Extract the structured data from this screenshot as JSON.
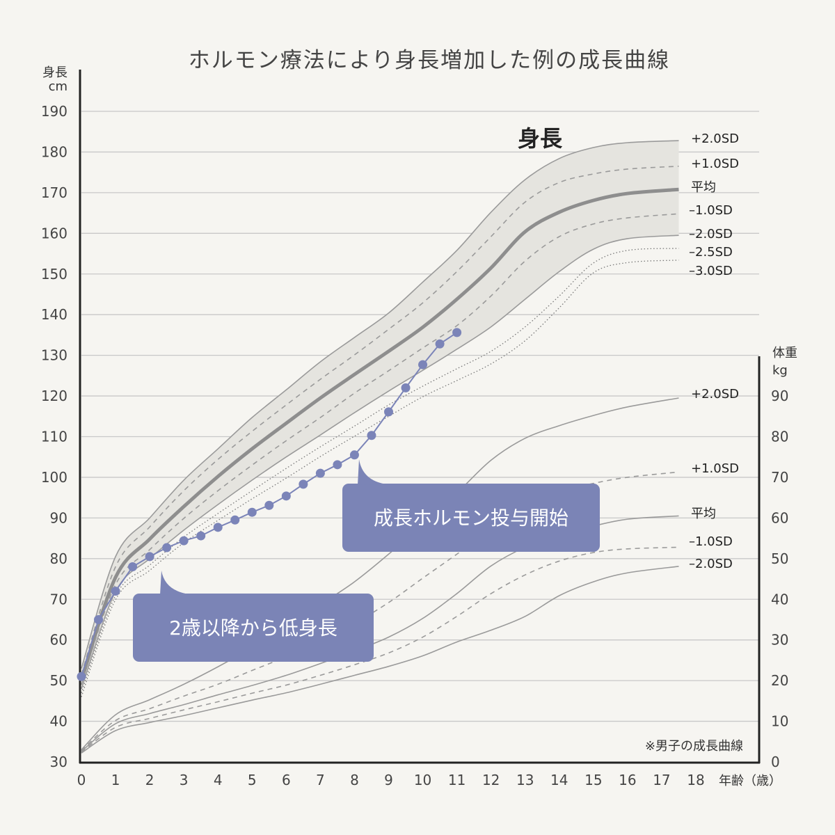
{
  "chart_data": {
    "type": "line",
    "title": "ホルモン療法により身長増加した例の成長曲線",
    "height_section_label": "身長",
    "note": "※男子の成長曲線",
    "xlabel": "年齢（歳）",
    "ylabel_left": "身長",
    "ylabel_left_unit": "cm",
    "ylabel_right": "体重",
    "ylabel_right_unit": "kg",
    "xlim": [
      0,
      18
    ],
    "ylim_left": [
      30,
      190
    ],
    "ylim_right": [
      0,
      90
    ],
    "grid": true,
    "x_ticks": [
      "0",
      "1",
      "2",
      "3",
      "4",
      "5",
      "6",
      "7",
      "8",
      "9",
      "10",
      "11",
      "12",
      "13",
      "14",
      "15",
      "16",
      "17",
      "18"
    ],
    "y_ticks_left": [
      "30",
      "40",
      "50",
      "60",
      "70",
      "80",
      "90",
      "100",
      "110",
      "120",
      "130",
      "140",
      "150",
      "160",
      "170",
      "180",
      "190"
    ],
    "y_ticks_right": [
      "0",
      "10",
      "20",
      "30",
      "40",
      "50",
      "60",
      "70",
      "80",
      "90"
    ],
    "ages": [
      0,
      1,
      2,
      3,
      4,
      5,
      6,
      7,
      8,
      9,
      10,
      11,
      12,
      13,
      14,
      15,
      16,
      17.5
    ],
    "height_series": [
      {
        "name": "+2.0SD",
        "style": "solid",
        "values": [
          53,
          80.5,
          90,
          99.3,
          107,
          114.7,
          121.5,
          128.4,
          134.4,
          140.4,
          148,
          155.8,
          165.2,
          173.2,
          178.4,
          181.1,
          182.3,
          182.8
        ]
      },
      {
        "name": "+1.0SD",
        "style": "dashed",
        "values": [
          51.5,
          78,
          87.8,
          96.7,
          104.4,
          111.3,
          117.8,
          124.1,
          130.1,
          136.4,
          142.9,
          150.6,
          159.2,
          167.7,
          172.5,
          174.6,
          175.8,
          176.5
        ]
      },
      {
        "name": "平均",
        "style": "thick",
        "values": [
          50,
          75.4,
          84.8,
          92.8,
          100.2,
          107,
          113.3,
          119.5,
          125.3,
          131,
          136.9,
          143.8,
          151.5,
          160.4,
          165.2,
          168.1,
          169.8,
          170.8
        ]
      },
      {
        "name": "–1.0SD",
        "style": "dashed",
        "values": [
          49,
          73.6,
          82.2,
          89.9,
          96.7,
          103,
          109,
          114.7,
          120.7,
          126.2,
          131.8,
          137.3,
          144.6,
          153.2,
          159.2,
          162.3,
          163.8,
          164.8
        ]
      },
      {
        "name": "–2.0SD",
        "style": "solid",
        "values": [
          48,
          71.9,
          80,
          87,
          93.3,
          99.3,
          105,
          110.4,
          115.9,
          121.2,
          126.3,
          131.5,
          137,
          143.8,
          150.6,
          156.1,
          158.7,
          159.5
        ]
      },
      {
        "name": "–2.5SD",
        "style": "dotted",
        "values": [
          47,
          70.9,
          78.4,
          85.3,
          91.1,
          96.7,
          102.2,
          107.5,
          112.6,
          117.8,
          122.4,
          126.7,
          131,
          137,
          144.6,
          152.7,
          155.8,
          156.3
        ]
      },
      {
        "name": "–3.0SD",
        "style": "dotted",
        "values": [
          46,
          69.9,
          77.1,
          83.9,
          89.4,
          94.7,
          99.8,
          105.1,
          110.1,
          115,
          119.8,
          123.8,
          127.9,
          133.6,
          141.7,
          150.3,
          152.8,
          153.4
        ]
      }
    ],
    "weight_series": [
      {
        "name": "+2.0SD",
        "style": "solid",
        "values": [
          3,
          11.6,
          15.3,
          19.1,
          23.4,
          28.1,
          33.2,
          38.7,
          44.3,
          51.1,
          58.5,
          66.1,
          74.2,
          79.6,
          82.7,
          85.2,
          87.3,
          89.5
        ]
      },
      {
        "name": "+1.0SD",
        "style": "dashed",
        "values": [
          2.8,
          10.2,
          13.1,
          16.2,
          19.1,
          22.5,
          25.9,
          29.8,
          34.1,
          39.2,
          45.2,
          51.1,
          57.1,
          62.6,
          66.5,
          68.5,
          70,
          71.3
        ]
      },
      {
        "name": "平均",
        "style": "solid",
        "values": [
          2.6,
          9.4,
          11.9,
          14.1,
          16.5,
          18.8,
          21.3,
          24.2,
          27.3,
          30.7,
          35.3,
          41.4,
          48.2,
          52.8,
          55.7,
          58,
          59.7,
          60.5
        ]
      },
      {
        "name": "–1.0SD",
        "style": "dashed",
        "values": [
          2.4,
          8.5,
          10.7,
          12.8,
          14.8,
          16.9,
          18.9,
          21.3,
          23.9,
          26.8,
          30.7,
          35.8,
          41.4,
          46,
          49.4,
          51.5,
          52.4,
          52.8
        ]
      },
      {
        "name": "–2.0SD",
        "style": "solid",
        "values": [
          2.2,
          7.7,
          9.7,
          11.4,
          13.3,
          15.2,
          17,
          19.1,
          21.3,
          23.5,
          26.1,
          29.5,
          32.4,
          35.8,
          40.9,
          44.3,
          46.5,
          48.1
        ]
      }
    ],
    "patient": {
      "x": [
        0,
        0.5,
        1,
        1.5,
        2,
        2.5,
        3,
        3.5,
        4,
        4.5,
        5,
        5.5,
        6,
        6.5,
        7,
        7.5,
        8,
        8.5,
        9,
        9.5,
        10,
        10.5,
        11
      ],
      "y": [
        51,
        65,
        72,
        78,
        80.5,
        82.7,
        84.4,
        85.6,
        87.7,
        89.5,
        91.4,
        93.1,
        95.4,
        98.3,
        101,
        103.1,
        105.5,
        110.3,
        116.1,
        122,
        127.7,
        132.8,
        135.6
      ]
    },
    "annotations": [
      {
        "text": "2歳以降から低身長",
        "age": 2.3
      },
      {
        "text": "成長ホルモン投与開始",
        "age": 8.1
      }
    ],
    "colors": {
      "background": "#f6f5f1",
      "band": "#e5e4df",
      "curve": "#9a9a9a",
      "mean": "#8e8e8e",
      "patient": "#7b84b8",
      "callout": "#7b84b6",
      "axis": "#222222",
      "grid": "#c8c8c8"
    }
  }
}
